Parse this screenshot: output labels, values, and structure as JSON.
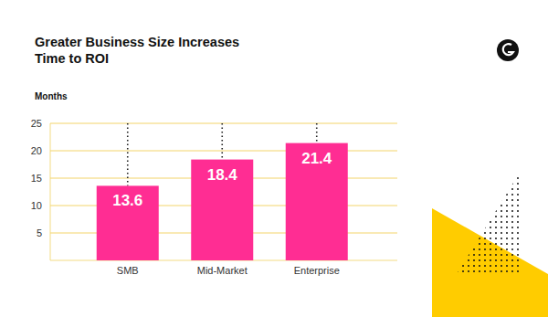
{
  "chart_data": {
    "type": "bar",
    "title": "Greater Business Size Increases\nTime to ROI",
    "y_label": "Months",
    "categories": [
      "SMB",
      "Mid-Market",
      "Enterprise"
    ],
    "values": [
      13.6,
      18.4,
      21.4
    ],
    "color": "#ff2d93",
    "ylim": [
      0,
      25
    ],
    "yticks": [
      5,
      10,
      15,
      20,
      25
    ],
    "grid": true,
    "data_labels": true
  }
}
